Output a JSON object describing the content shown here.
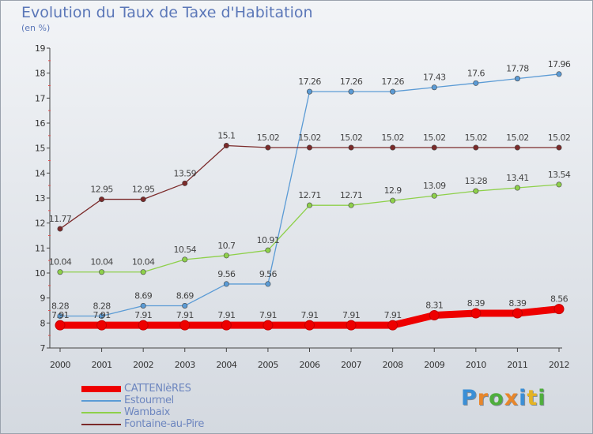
{
  "header": {
    "title": "Evolution du Taux de Taxe d'Habitation",
    "unit": "(en %)"
  },
  "logo": {
    "letters": [
      "P",
      "r",
      "o",
      "x",
      "i",
      "t",
      "i"
    ],
    "colors": [
      "#3b8fd6",
      "#e8862a",
      "#4fae3c",
      "#e8862a",
      "#3b8fd6",
      "#e4b324",
      "#4fae3c"
    ]
  },
  "chart_data": {
    "type": "line",
    "title": "Evolution du Taux de Taxe d'Habitation",
    "ylabel": "(en %)",
    "x": [
      "2000",
      "2001",
      "2002",
      "2003",
      "2004",
      "2005",
      "2006",
      "2007",
      "2008",
      "2009",
      "2010",
      "2011",
      "2012"
    ],
    "ylim": [
      7,
      19
    ],
    "yticks": [
      7,
      8,
      9,
      10,
      11,
      12,
      13,
      14,
      15,
      16,
      17,
      18,
      19
    ],
    "grid": false,
    "legend_position": "bottom-left",
    "series": [
      {
        "name": "CATTENIèRES",
        "color": "#ee0000",
        "highlight": true,
        "values": [
          7.91,
          7.91,
          7.91,
          7.91,
          7.91,
          7.91,
          7.91,
          7.91,
          7.91,
          8.31,
          8.39,
          8.39,
          8.56
        ],
        "labels": [
          "7.91",
          "7.91",
          "7.91",
          "7.91",
          "7.91",
          "7.91",
          "7.91",
          "7.91",
          "7.91",
          "8.31",
          "8.39",
          "8.39",
          "8.56"
        ]
      },
      {
        "name": "Estourmel",
        "color": "#5b9bd5",
        "highlight": false,
        "values": [
          8.28,
          8.28,
          8.69,
          8.69,
          9.56,
          9.56,
          17.26,
          17.26,
          17.26,
          17.43,
          17.6,
          17.78,
          17.96
        ],
        "labels": [
          "8.28",
          "8.28",
          "8.69",
          "8.69",
          "9.56",
          "9.56",
          "17.26",
          "17.26",
          "17.26",
          "17.43",
          "17.6",
          "17.78",
          "17.96"
        ]
      },
      {
        "name": "Wambaix",
        "color": "#8ed04a",
        "highlight": false,
        "values": [
          10.04,
          10.04,
          10.04,
          10.54,
          10.7,
          10.91,
          12.71,
          12.71,
          12.9,
          13.09,
          13.28,
          13.41,
          13.54
        ],
        "labels": [
          "10.04",
          "10.04",
          "10.04",
          "10.54",
          "10.7",
          "10.91",
          "12.71",
          "12.71",
          "12.9",
          "13.09",
          "13.28",
          "13.41",
          "13.54"
        ]
      },
      {
        "name": "Fontaine-au-Pire",
        "color": "#7b2a2a",
        "highlight": false,
        "values": [
          11.77,
          12.95,
          12.95,
          13.59,
          15.1,
          15.02,
          15.02,
          15.02,
          15.02,
          15.02,
          15.02,
          15.02,
          15.02
        ],
        "labels": [
          "11.77",
          "12.95",
          "12.95",
          "13.59",
          "15.1",
          "15.02",
          "15.02",
          "15.02",
          "15.02",
          "15.02",
          "15.02",
          "15.02",
          "15.02"
        ]
      }
    ]
  }
}
